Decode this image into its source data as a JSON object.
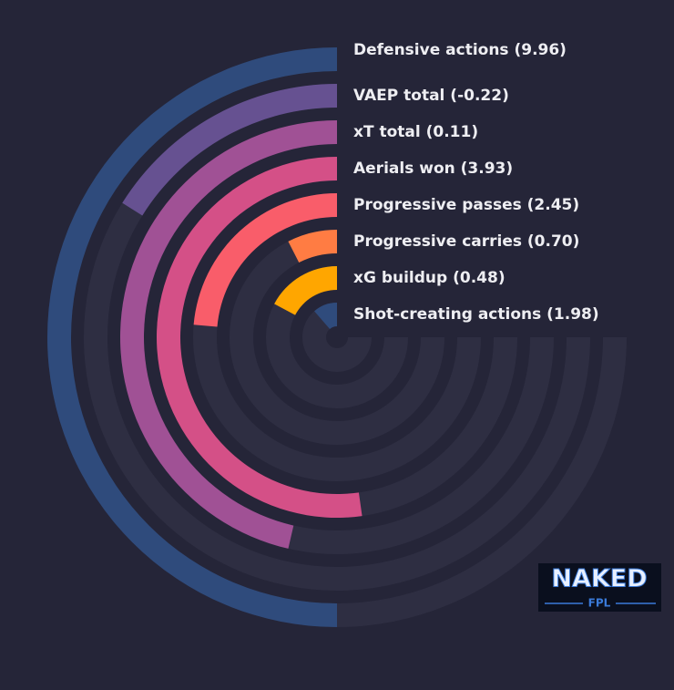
{
  "chart_data": {
    "type": "radial-bar",
    "angle_max": 270,
    "track_color": "#2e2e42",
    "series": [
      {
        "name": "Defensive actions (9.96)",
        "value": 180,
        "color": "#2f4b7c"
      },
      {
        "name": "VAEP total (-0.22)",
        "value": 58,
        "color": "#665191"
      },
      {
        "name": "xT total (0.11)",
        "value": 167,
        "color": "#a05195"
      },
      {
        "name": "Aerials won (3.93)",
        "value": 188,
        "color": "#d45087"
      },
      {
        "name": "Progressive passes (2.45)",
        "value": 85,
        "color": "#f95d6a"
      },
      {
        "name": "Progressive carries (0.70)",
        "value": 27,
        "color": "#ff7c43"
      },
      {
        "name": "xG buildup (0.48)",
        "value": 62,
        "color": "#ffa600"
      },
      {
        "name": "Shot-creating actions (1.98)",
        "value": 41,
        "color": "#2f4b7c"
      }
    ]
  },
  "logo": {
    "title": "NAKED",
    "subtitle": "FPL"
  }
}
